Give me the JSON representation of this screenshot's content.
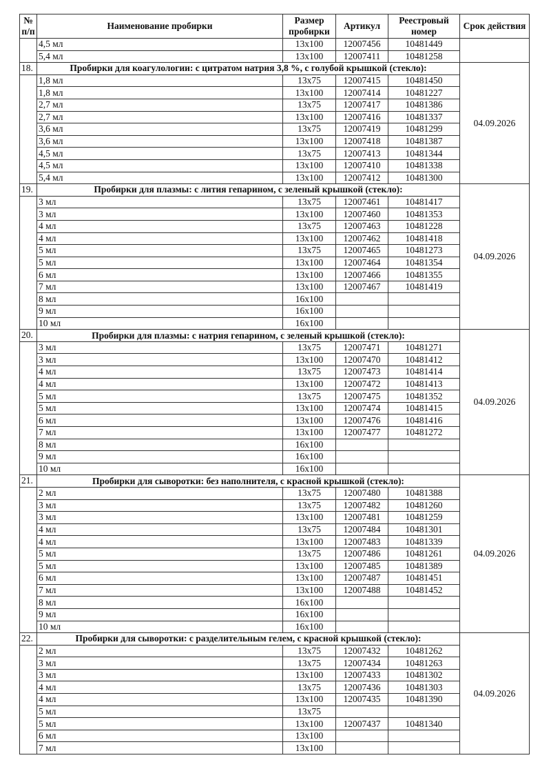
{
  "headers": {
    "num": "№ п/п",
    "name": "Наименование пробирки",
    "size": "Размер пробирки",
    "article": "Артикул",
    "registry": "Реестровый номер",
    "expiry": "Срок действия"
  },
  "sections": [
    {
      "num": "",
      "title": "",
      "expiry": "",
      "rows": [
        {
          "name": "4,5 мл",
          "size": "13x100",
          "article": "12007456",
          "registry": "10481449"
        },
        {
          "name": "5,4 мл",
          "size": "13x100",
          "article": "12007411",
          "registry": "10481258"
        }
      ]
    },
    {
      "num": "18.",
      "title": "Пробирки для коагулологии: с цитратом натрия 3,8 %, с голубой крышкой (стекло):",
      "expiry": "04.09.2026",
      "rows": [
        {
          "name": "1,8 мл",
          "size": "13x75",
          "article": "12007415",
          "registry": "10481450"
        },
        {
          "name": "1,8 мл",
          "size": "13x100",
          "article": "12007414",
          "registry": "10481227"
        },
        {
          "name": "2,7 мл",
          "size": "13x75",
          "article": "12007417",
          "registry": "10481386"
        },
        {
          "name": "2,7 мл",
          "size": "13x100",
          "article": "12007416",
          "registry": "10481337"
        },
        {
          "name": "3,6 мл",
          "size": "13x75",
          "article": "12007419",
          "registry": "10481299"
        },
        {
          "name": "3,6 мл",
          "size": "13x100",
          "article": "12007418",
          "registry": "10481387"
        },
        {
          "name": "4,5 мл",
          "size": "13x75",
          "article": "12007413",
          "registry": "10481344"
        },
        {
          "name": "4,5 мл",
          "size": "13x100",
          "article": "12007410",
          "registry": "10481338"
        },
        {
          "name": "5,4 мл",
          "size": "13x100",
          "article": "12007412",
          "registry": "10481300"
        }
      ]
    },
    {
      "num": "19.",
      "title": "Пробирки для плазмы: с лития гепарином, с зеленый крышкой (стекло):",
      "expiry": "04.09.2026",
      "rows": [
        {
          "name": "3 мл",
          "size": "13x75",
          "article": "12007461",
          "registry": "10481417"
        },
        {
          "name": "3 мл",
          "size": "13x100",
          "article": "12007460",
          "registry": "10481353"
        },
        {
          "name": "4 мл",
          "size": "13x75",
          "article": "12007463",
          "registry": "10481228"
        },
        {
          "name": "4 мл",
          "size": "13x100",
          "article": "12007462",
          "registry": "10481418"
        },
        {
          "name": "5 мл",
          "size": "13x75",
          "article": "12007465",
          "registry": "10481273"
        },
        {
          "name": "5 мл",
          "size": "13x100",
          "article": "12007464",
          "registry": "10481354"
        },
        {
          "name": "6 мл",
          "size": "13x100",
          "article": "12007466",
          "registry": "10481355"
        },
        {
          "name": "7 мл",
          "size": "13x100",
          "article": "12007467",
          "registry": "10481419"
        },
        {
          "name": "8 мл",
          "size": "16x100",
          "article": "",
          "registry": ""
        },
        {
          "name": "9 мл",
          "size": "16x100",
          "article": "",
          "registry": ""
        },
        {
          "name": "10 мл",
          "size": "16x100",
          "article": "",
          "registry": ""
        }
      ]
    },
    {
      "num": "20.",
      "title": "Пробирки для плазмы: с натрия гепарином, с зеленый крышкой (стекло):",
      "expiry": "04.09.2026",
      "rows": [
        {
          "name": "3 мл",
          "size": "13x75",
          "article": "12007471",
          "registry": "10481271"
        },
        {
          "name": "3 мл",
          "size": "13x100",
          "article": "12007470",
          "registry": "10481412"
        },
        {
          "name": "4 мл",
          "size": "13x75",
          "article": "12007473",
          "registry": "10481414"
        },
        {
          "name": "4 мл",
          "size": "13x100",
          "article": "12007472",
          "registry": "10481413"
        },
        {
          "name": "5 мл",
          "size": "13x75",
          "article": "12007475",
          "registry": "10481352"
        },
        {
          "name": "5 мл",
          "size": "13x100",
          "article": "12007474",
          "registry": "10481415"
        },
        {
          "name": "6 мл",
          "size": "13x100",
          "article": "12007476",
          "registry": "10481416"
        },
        {
          "name": "7 мл",
          "size": "13x100",
          "article": "12007477",
          "registry": "10481272"
        },
        {
          "name": "8 мл",
          "size": "16x100",
          "article": "",
          "registry": ""
        },
        {
          "name": "9 мл",
          "size": "16x100",
          "article": "",
          "registry": ""
        },
        {
          "name": "10 мл",
          "size": "16x100",
          "article": "",
          "registry": ""
        }
      ]
    },
    {
      "num": "21.",
      "title": "Пробирки для сыворотки: без наполнителя, с красной крышкой (стекло):",
      "expiry": "04.09.2026",
      "rows": [
        {
          "name": "2 мл",
          "size": "13x75",
          "article": "12007480",
          "registry": "10481388"
        },
        {
          "name": "3 мл",
          "size": "13x75",
          "article": "12007482",
          "registry": "10481260"
        },
        {
          "name": "3 мл",
          "size": "13x100",
          "article": "12007481",
          "registry": "10481259"
        },
        {
          "name": "4 мл",
          "size": "13x75",
          "article": "12007484",
          "registry": "10481301"
        },
        {
          "name": "4 мл",
          "size": "13x100",
          "article": "12007483",
          "registry": "10481339"
        },
        {
          "name": "5 мл",
          "size": "13x75",
          "article": "12007486",
          "registry": "10481261"
        },
        {
          "name": "5 мл",
          "size": "13x100",
          "article": "12007485",
          "registry": "10481389"
        },
        {
          "name": "6 мл",
          "size": "13x100",
          "article": "12007487",
          "registry": "10481451"
        },
        {
          "name": "7 мл",
          "size": "13x100",
          "article": "12007488",
          "registry": "10481452"
        },
        {
          "name": "8 мл",
          "size": "16x100",
          "article": "",
          "registry": ""
        },
        {
          "name": "9 мл",
          "size": "16x100",
          "article": "",
          "registry": ""
        },
        {
          "name": "10 мл",
          "size": "16x100",
          "article": "",
          "registry": ""
        }
      ]
    },
    {
      "num": "22.",
      "title": "Пробирки для сыворотки: с разделительным гелем, с красной крышкой (стекло):",
      "expiry": "04.09.2026",
      "rows": [
        {
          "name": "2 мл",
          "size": "13x75",
          "article": "12007432",
          "registry": "10481262"
        },
        {
          "name": "3 мл",
          "size": "13x75",
          "article": "12007434",
          "registry": "10481263"
        },
        {
          "name": "3 мл",
          "size": "13x100",
          "article": "12007433",
          "registry": "10481302"
        },
        {
          "name": "4 мл",
          "size": "13x75",
          "article": "12007436",
          "registry": "10481303"
        },
        {
          "name": "4 мл",
          "size": "13x100",
          "article": "12007435",
          "registry": "10481390"
        },
        {
          "name": "5 мл",
          "size": "13x75",
          "article": "",
          "registry": ""
        },
        {
          "name": "5 мл",
          "size": "13x100",
          "article": "12007437",
          "registry": "10481340"
        },
        {
          "name": "6 мл",
          "size": "13x100",
          "article": "",
          "registry": ""
        },
        {
          "name": "7 мл",
          "size": "13x100",
          "article": "",
          "registry": ""
        }
      ]
    }
  ]
}
